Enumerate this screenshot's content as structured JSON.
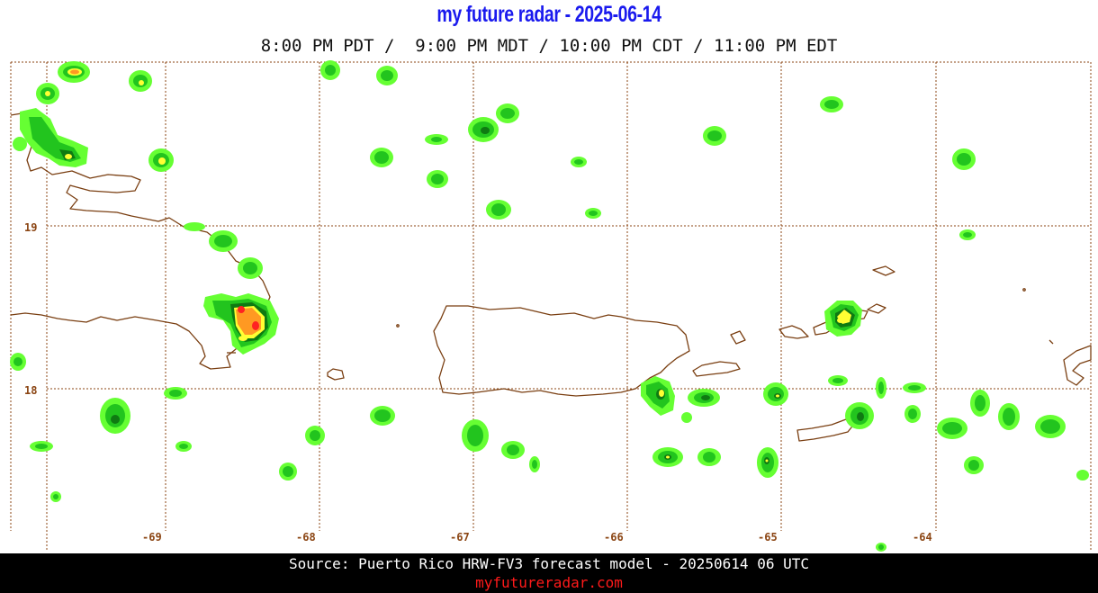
{
  "header": {
    "title": "my future radar - 2025-06-14",
    "times": "8:00 PM PDT /  9:00 PM MDT / 10:00 PM CDT / 11:00 PM EDT"
  },
  "map": {
    "region": "Puerto Rico",
    "longitude_labels": [
      "-69",
      "-68",
      "-67",
      "-66",
      "-65",
      "-64"
    ],
    "latitude_labels": [
      "19",
      "18"
    ],
    "colors": {
      "grid": "#8b4513",
      "coast": "#7a3f12",
      "label": "#8b4513",
      "precip_light": "#66ff33",
      "precip_moderate": "#22c41e",
      "precip_heavy": "#0f7a12",
      "precip_yellow": "#ffff33",
      "precip_orange": "#ff9922",
      "precip_red": "#ff2222"
    }
  },
  "footer": {
    "source": "Source: Puerto Rico HRW-FV3 forecast model - 20250614 06 UTC",
    "site": "myfutureradar.com"
  }
}
